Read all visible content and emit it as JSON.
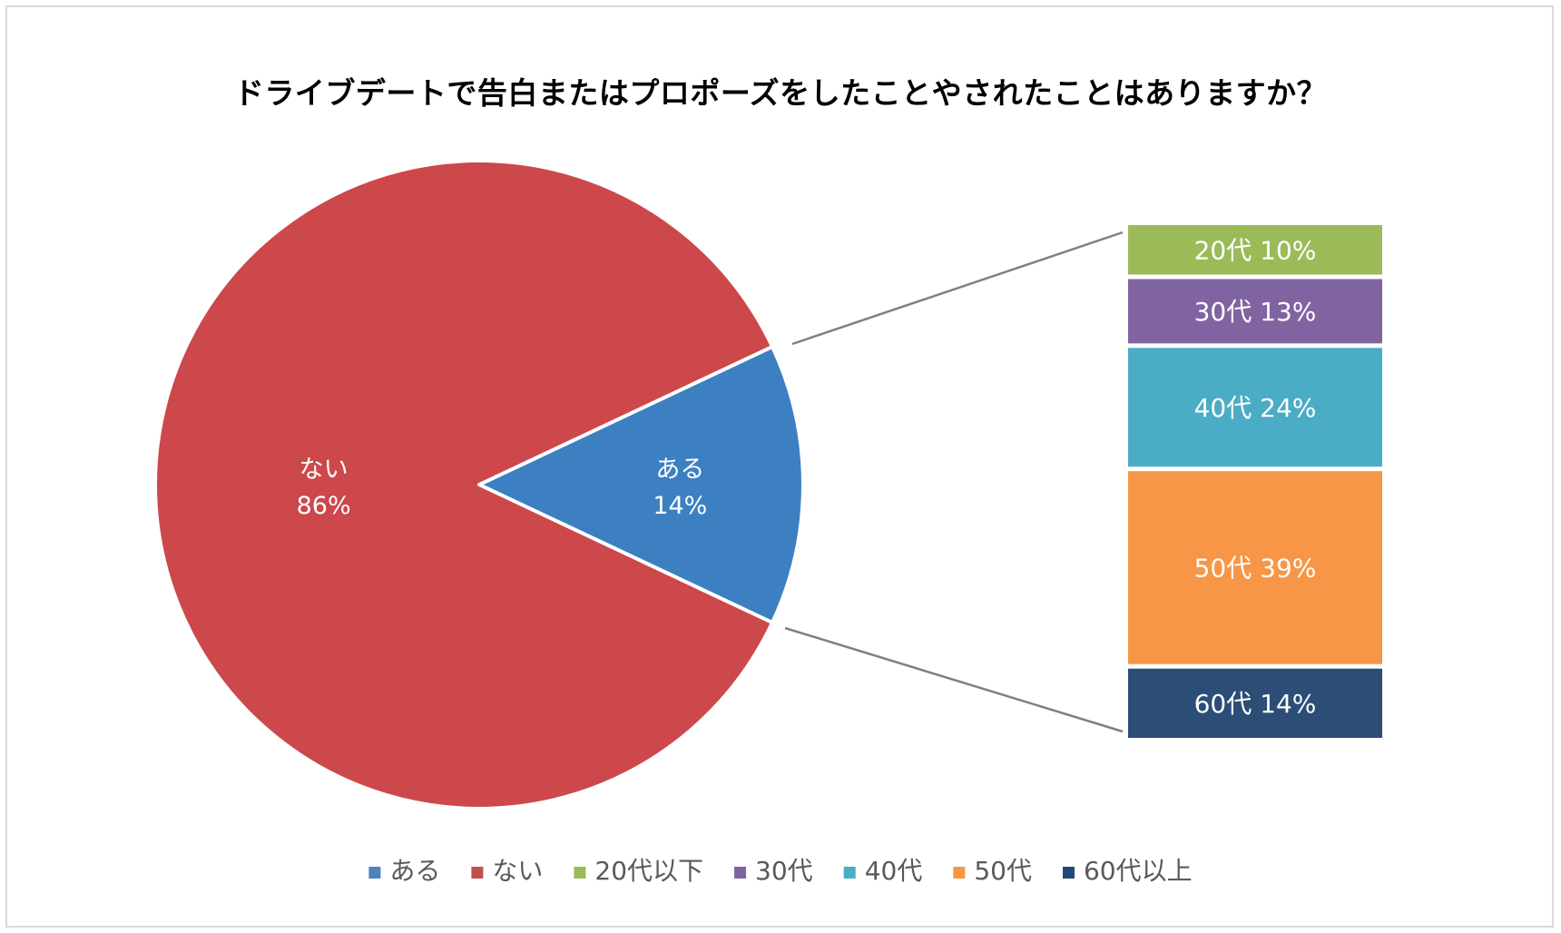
{
  "chart_data": {
    "type": "pie",
    "title": "ドライブデートで告白またはプロポーズをしたことやされたことはありますか？",
    "slices": [
      {
        "key": "aru",
        "label": "ある",
        "value": 14,
        "value_label": "14%",
        "color": "#3d80c2"
      },
      {
        "key": "nai",
        "label": "ない",
        "value": 86,
        "value_label": "86%",
        "color": "#cc484b"
      }
    ],
    "breakdown": {
      "of": "ある",
      "type": "stacked-bar",
      "segments": [
        {
          "label": "20代",
          "value": 10,
          "value_label": "10%",
          "color": "#9bbb59"
        },
        {
          "label": "30代",
          "value": 13,
          "value_label": "13%",
          "color": "#8064a2"
        },
        {
          "label": "40代",
          "value": 24,
          "value_label": "24%",
          "color": "#4bacc6"
        },
        {
          "label": "50代",
          "value": 39,
          "value_label": "39%",
          "color": "#f79646"
        },
        {
          "label": "60代",
          "value": 14,
          "value_label": "14%",
          "color": "#2c4d75"
        }
      ]
    },
    "legend": {
      "position": "bottom",
      "items": [
        {
          "label": "ある",
          "color": "#4f81bd"
        },
        {
          "label": "ない",
          "color": "#c0504d"
        },
        {
          "label": "20代以下",
          "color": "#9bbb59"
        },
        {
          "label": "30代",
          "color": "#8064a2"
        },
        {
          "label": "40代",
          "color": "#4bacc6"
        },
        {
          "label": "50代",
          "color": "#f79646"
        },
        {
          "label": "60代以上",
          "color": "#1f497d"
        }
      ]
    }
  }
}
